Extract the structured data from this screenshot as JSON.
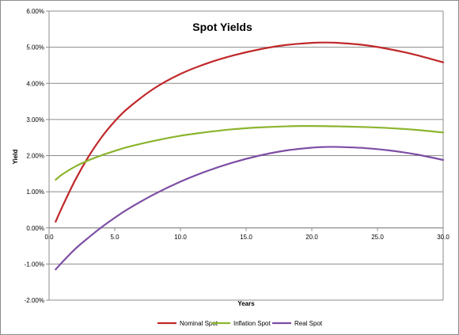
{
  "chart_data": {
    "type": "line",
    "title": "Spot Yields",
    "xlabel": "Years",
    "ylabel": "Yield",
    "xlim": [
      0,
      30
    ],
    "ylim": [
      -0.02,
      0.06
    ],
    "x_ticks": [
      {
        "value": 0,
        "label": "0.0"
      },
      {
        "value": 5,
        "label": "5.0"
      },
      {
        "value": 10,
        "label": "10.0"
      },
      {
        "value": 15,
        "label": "15.0"
      },
      {
        "value": 20,
        "label": "20.0"
      },
      {
        "value": 25,
        "label": "25.0"
      },
      {
        "value": 30,
        "label": "30.0"
      }
    ],
    "y_ticks": [
      {
        "value": 0.06,
        "label": "6.00%"
      },
      {
        "value": 0.05,
        "label": "5.00%"
      },
      {
        "value": 0.04,
        "label": "4.00%"
      },
      {
        "value": 0.03,
        "label": "3.00%"
      },
      {
        "value": 0.02,
        "label": "2.00%"
      },
      {
        "value": 0.01,
        "label": "1.00%"
      },
      {
        "value": 0.0,
        "label": "0.00%"
      },
      {
        "value": -0.01,
        "label": "-1.00%"
      },
      {
        "value": -0.02,
        "label": "-2.00%"
      }
    ],
    "grid": "horizontal",
    "legend_position": "bottom",
    "series": [
      {
        "name": "Nominal Spot",
        "color": "#c0282a",
        "x": [
          0.5,
          1,
          2,
          3,
          4,
          5,
          6,
          8,
          10,
          12,
          14,
          16,
          18,
          20,
          21,
          22,
          24,
          26,
          28,
          30
        ],
        "y": [
          0.0017,
          0.0058,
          0.0133,
          0.0197,
          0.0251,
          0.0295,
          0.0331,
          0.0386,
          0.0426,
          0.0455,
          0.0477,
          0.0494,
          0.0506,
          0.0512,
          0.0513,
          0.0512,
          0.0506,
          0.0494,
          0.0478,
          0.0458
        ]
      },
      {
        "name": "Inflation Spot",
        "color": "#8ab52e",
        "x": [
          0.5,
          1,
          2,
          3,
          4,
          5,
          6,
          8,
          10,
          12,
          14,
          16,
          18,
          20,
          22,
          24,
          26,
          28,
          30
        ],
        "y": [
          0.0133,
          0.0148,
          0.017,
          0.0187,
          0.0201,
          0.0213,
          0.0224,
          0.0241,
          0.0255,
          0.0265,
          0.0273,
          0.0278,
          0.0281,
          0.0282,
          0.0281,
          0.0279,
          0.0276,
          0.0271,
          0.0264
        ]
      },
      {
        "name": "Real Spot",
        "color": "#7d4ea5",
        "x": [
          0.5,
          1,
          2,
          3,
          4,
          5,
          6,
          8,
          10,
          12,
          14,
          16,
          18,
          20,
          21,
          22,
          24,
          26,
          28,
          30
        ],
        "y": [
          -0.0115,
          -0.0095,
          -0.0058,
          -0.0027,
          0.0002,
          0.0028,
          0.0052,
          0.0093,
          0.0128,
          0.0157,
          0.0181,
          0.02,
          0.0214,
          0.0222,
          0.0224,
          0.0224,
          0.0221,
          0.0214,
          0.0203,
          0.0188
        ]
      }
    ]
  }
}
